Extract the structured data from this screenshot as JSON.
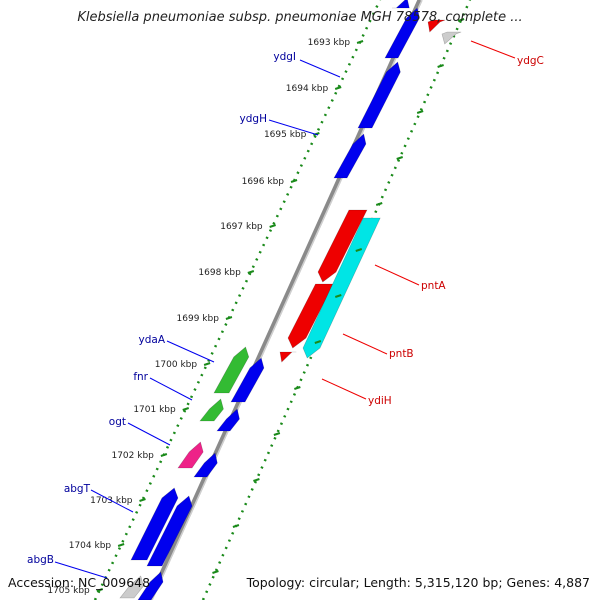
{
  "title": "Klebsiella pneumoniae subsp. pneumoniae MGH 78578, complete ...",
  "accession": "Accession: NC_009648",
  "summary": "Topology: circular; Length: 5,315,120 bp; Genes: 4,887",
  "colors": {
    "forward_gene": "#0000ee",
    "reverse_gene": "#ee0000",
    "forward_label": "#00009c",
    "reverse_label": "#cc0000",
    "backbone": "#999999",
    "dotted_track": "#1a8a1a",
    "green_gene": "#33bb33",
    "magenta_gene": "#ee2288",
    "cyan_gene": "#00e5e5",
    "grey_gene": "#cccccc"
  },
  "ticks": [
    "1693 kbp",
    "1694 kbp",
    "1695 kbp",
    "1696 kbp",
    "1697 kbp",
    "1698 kbp",
    "1699 kbp",
    "1700 kbp",
    "1701 kbp",
    "1702 kbp",
    "1703 kbp",
    "1704 kbp",
    "1705 kbp"
  ],
  "gene_labels": [
    {
      "name": "ydgI",
      "strand": "forward"
    },
    {
      "name": "ydgH",
      "strand": "forward"
    },
    {
      "name": "ydaA",
      "strand": "forward"
    },
    {
      "name": "fnr",
      "strand": "forward"
    },
    {
      "name": "ogt",
      "strand": "forward"
    },
    {
      "name": "abgT",
      "strand": "forward"
    },
    {
      "name": "abgB",
      "strand": "forward"
    },
    {
      "name": "ydgC",
      "strand": "reverse"
    },
    {
      "name": "pntA",
      "strand": "reverse"
    },
    {
      "name": "pntB",
      "strand": "reverse"
    },
    {
      "name": "ydiH",
      "strand": "reverse"
    }
  ]
}
